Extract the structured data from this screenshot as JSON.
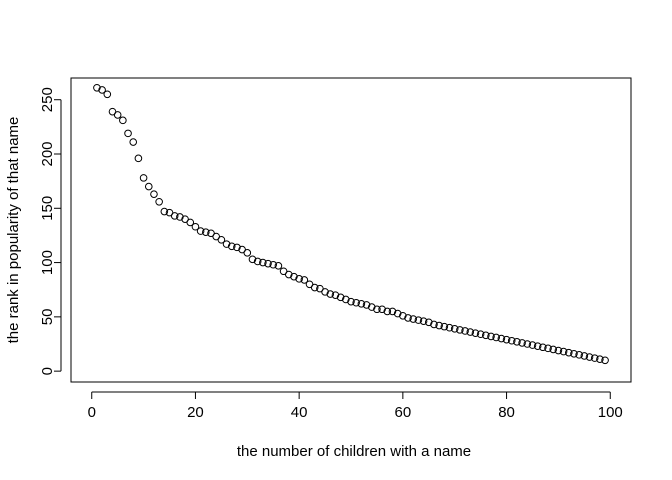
{
  "chart_data": {
    "type": "scatter",
    "title": "",
    "xlabel": "the number of children with a name",
    "ylabel": "the rank in popularity of that name",
    "xlim": [
      -4,
      104
    ],
    "ylim": [
      -10,
      270
    ],
    "xticks": [
      0,
      20,
      40,
      60,
      80,
      100
    ],
    "yticks": [
      0,
      50,
      100,
      150,
      200,
      250
    ],
    "grid": false,
    "legend": "none",
    "marker": "open-circle",
    "x": [
      1,
      2,
      3,
      4,
      5,
      6,
      7,
      8,
      9,
      10,
      11,
      12,
      13,
      14,
      15,
      16,
      17,
      18,
      19,
      20,
      21,
      22,
      23,
      24,
      25,
      26,
      27,
      28,
      29,
      30,
      31,
      32,
      33,
      34,
      35,
      36,
      37,
      38,
      39,
      40,
      41,
      42,
      43,
      44,
      45,
      46,
      47,
      48,
      49,
      50,
      51,
      52,
      53,
      54,
      55,
      56,
      57,
      58,
      59,
      60,
      61,
      62,
      63,
      64,
      65,
      66,
      67,
      68,
      69,
      70,
      71,
      72,
      73,
      74,
      75,
      76,
      77,
      78,
      79,
      80,
      81,
      82,
      83,
      84,
      85,
      86,
      87,
      88,
      89,
      90,
      91,
      92,
      93,
      94,
      95,
      96,
      97,
      98,
      99
    ],
    "y": [
      261,
      259,
      255,
      239,
      236,
      231,
      219,
      211,
      196,
      178,
      170,
      163,
      156,
      147,
      146,
      143,
      142,
      140,
      137,
      133,
      129,
      128,
      127,
      124,
      121,
      117,
      115,
      114,
      112,
      109,
      103,
      101,
      100,
      99,
      98,
      97,
      92,
      89,
      87,
      85,
      84,
      80,
      77,
      76,
      73,
      71,
      70,
      68,
      66,
      64,
      63,
      62,
      61,
      59,
      57,
      57,
      55,
      55,
      53,
      51,
      49,
      48,
      47,
      46,
      45,
      43,
      42,
      41,
      40,
      39,
      38,
      37,
      36,
      35,
      34,
      33,
      32,
      31,
      30,
      29,
      28,
      27,
      26,
      25,
      24,
      23,
      22,
      21,
      20,
      19,
      18,
      17,
      16,
      15,
      14,
      13,
      12,
      11,
      10
    ]
  }
}
